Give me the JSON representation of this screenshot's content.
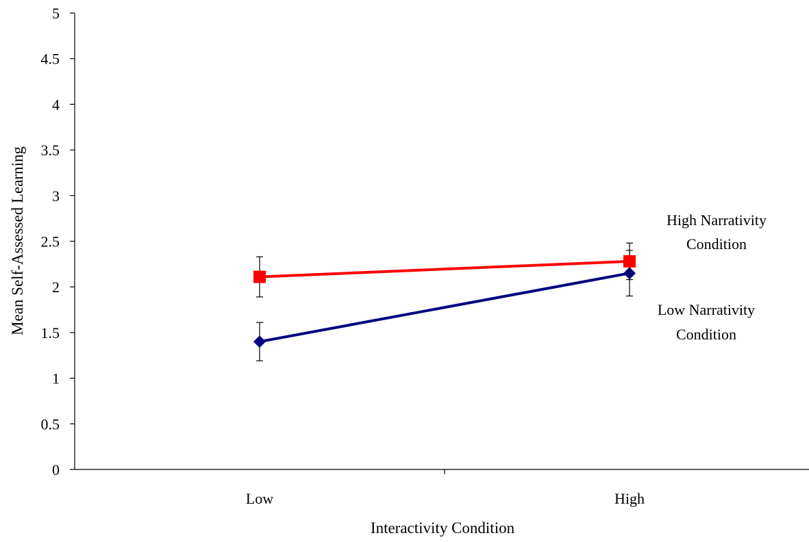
{
  "chart_data": {
    "type": "line",
    "xlabel": "Interactivity Condition",
    "ylabel": "Mean Self-Assessed Learning",
    "ylim": [
      0,
      5
    ],
    "y_ticks": [
      "0",
      "0.5",
      "1",
      "1.5",
      "2",
      "2.5",
      "3",
      "3.5",
      "4",
      "4.5",
      "5"
    ],
    "categories": [
      "Low",
      "High"
    ],
    "grid": false,
    "legend": "none",
    "series": [
      {
        "name": "High Narrativity Condition",
        "label_lines": [
          "High Narrativity",
          "Condition"
        ],
        "values": [
          2.11,
          2.28
        ],
        "error": [
          0.22,
          0.2
        ],
        "color": "#ff0000",
        "marker": "square"
      },
      {
        "name": "Low Narrativity Condition",
        "label_lines": [
          "Low Narrativity",
          "Condition"
        ],
        "values": [
          1.4,
          2.15
        ],
        "error": [
          0.21,
          0.25
        ],
        "color": "#000080",
        "marker": "diamond"
      }
    ]
  }
}
